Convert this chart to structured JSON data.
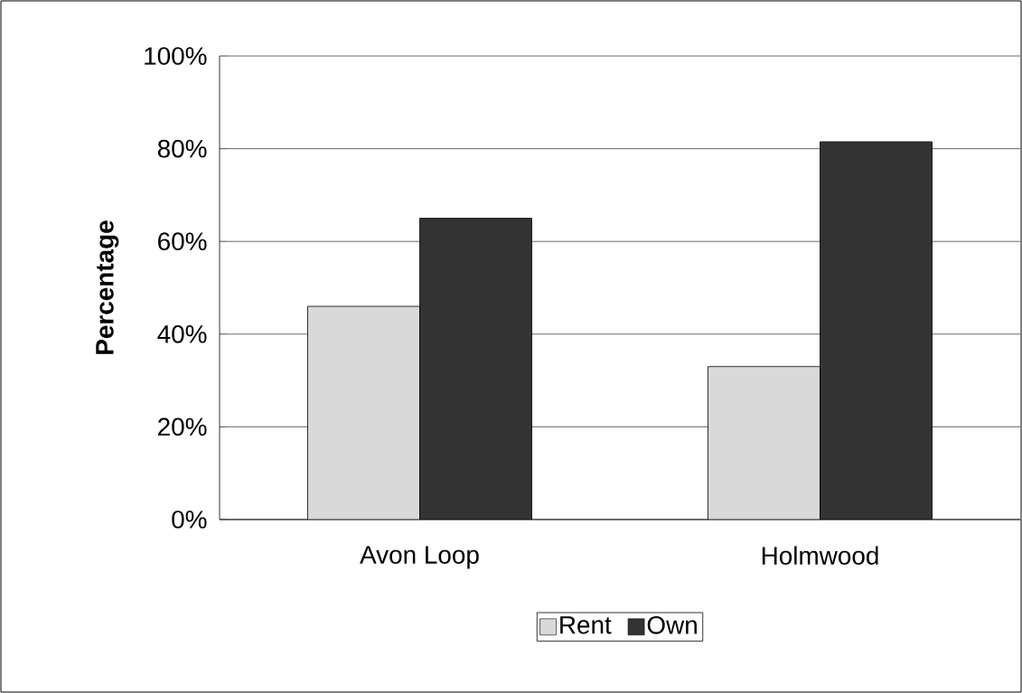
{
  "chart_data": {
    "type": "bar",
    "ylabel": "Percentage",
    "categories": [
      "Avon Loop",
      "Holmwood"
    ],
    "series": [
      {
        "name": "Rent",
        "color": "#d9d9d9",
        "values": [
          46,
          33
        ]
      },
      {
        "name": "Own",
        "color": "#333333",
        "values": [
          65,
          81.5
        ]
      }
    ],
    "ylim": [
      0,
      100
    ],
    "yticks": [
      {
        "value": 0,
        "label": "0%"
      },
      {
        "value": 20,
        "label": "20%"
      },
      {
        "value": 40,
        "label": "40%"
      },
      {
        "value": 60,
        "label": "60%"
      },
      {
        "value": 80,
        "label": "80%"
      },
      {
        "value": 100,
        "label": "100%"
      }
    ],
    "grid": "y",
    "legend": "bottom"
  }
}
